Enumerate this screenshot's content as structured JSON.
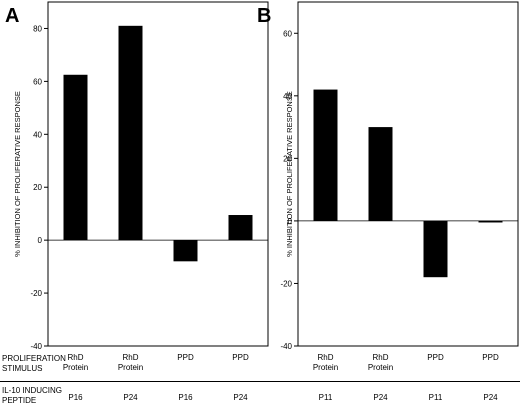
{
  "row_labels": {
    "stimulus_line1": "PROLIFERATION",
    "stimulus_line2": "STIMULUS",
    "peptide_line1": "IL-10 INDUCING",
    "peptide_line2": "PEPTIDE"
  },
  "chart_data": [
    {
      "panel": "A",
      "type": "bar",
      "ylabel": "% INHIBITION OF PROLIFERATIVE RESPONSE",
      "ylim": [
        -40,
        90
      ],
      "yticks": [
        -40,
        -20,
        0,
        20,
        40,
        60,
        80
      ],
      "categories": [
        {
          "stimulus": [
            "RhD",
            "Protein"
          ],
          "peptide": "P16"
        },
        {
          "stimulus": [
            "RhD",
            "Protein"
          ],
          "peptide": "P24"
        },
        {
          "stimulus": [
            "PPD"
          ],
          "peptide": "P16"
        },
        {
          "stimulus": [
            "PPD"
          ],
          "peptide": "P24"
        }
      ],
      "values": [
        62.5,
        81,
        -8,
        9.5
      ],
      "bar_color": "#000000",
      "grid": false
    },
    {
      "panel": "B",
      "type": "bar",
      "ylabel": "% INHIBITION OF PROLIFERATIVE RESPONSE",
      "ylim": [
        -40,
        70
      ],
      "yticks": [
        -40,
        -20,
        0,
        20,
        40,
        60
      ],
      "categories": [
        {
          "stimulus": [
            "RhD",
            "Protein"
          ],
          "peptide": "P11"
        },
        {
          "stimulus": [
            "RhD",
            "Protein"
          ],
          "peptide": "P24"
        },
        {
          "stimulus": [
            "PPD"
          ],
          "peptide": "P11"
        },
        {
          "stimulus": [
            "PPD"
          ],
          "peptide": "P24"
        }
      ],
      "values": [
        42,
        30,
        -18,
        -0.5
      ],
      "bar_color": "#000000",
      "grid": false
    }
  ]
}
